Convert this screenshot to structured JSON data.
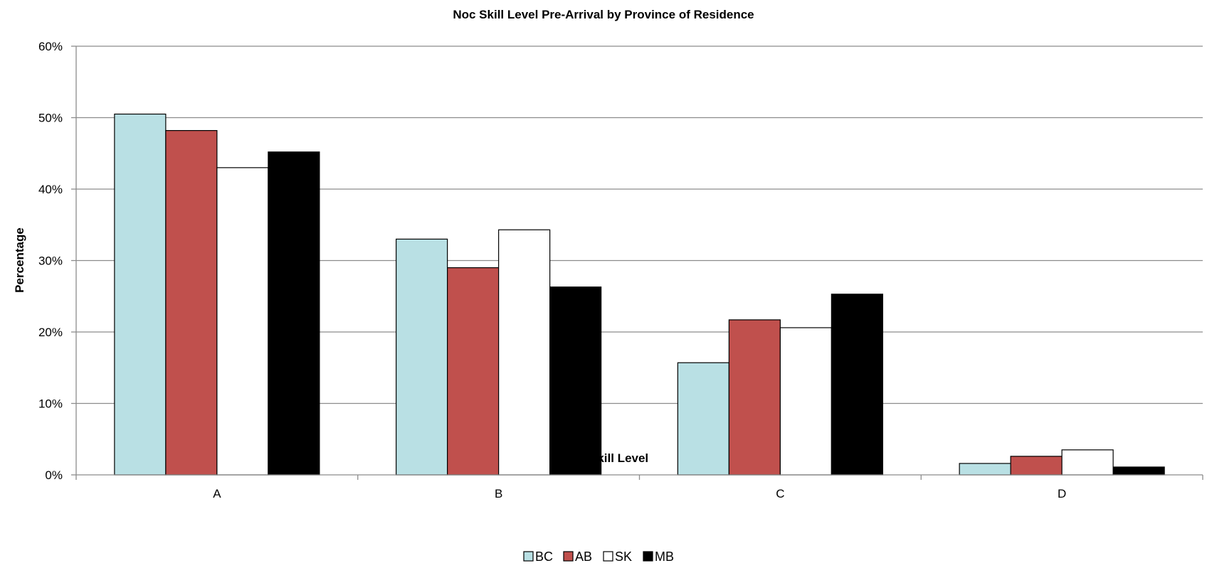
{
  "chart_data": {
    "type": "bar",
    "title": "Noc Skill Level Pre-Arrival by Province of Residence",
    "xlabel": "Skill Level",
    "ylabel": "Percentage",
    "categories": [
      "A",
      "B",
      "C",
      "D"
    ],
    "series": [
      {
        "name": "BC",
        "values": [
          50.5,
          33.0,
          15.7,
          1.6
        ],
        "color": "#B9E0E4"
      },
      {
        "name": "AB",
        "values": [
          48.2,
          29.0,
          21.7,
          2.6
        ],
        "color": "#C0504D"
      },
      {
        "name": "SK",
        "values": [
          43.0,
          34.3,
          20.6,
          3.5
        ],
        "color": "#FFFFFF"
      },
      {
        "name": "MB",
        "values": [
          45.2,
          26.3,
          25.3,
          1.1
        ],
        "color": "#000000"
      }
    ],
    "ylim": [
      0,
      60
    ],
    "yticks": [
      "0%",
      "10%",
      "20%",
      "30%",
      "40%",
      "50%",
      "60%"
    ],
    "grid": true,
    "legend_position": "bottom"
  }
}
